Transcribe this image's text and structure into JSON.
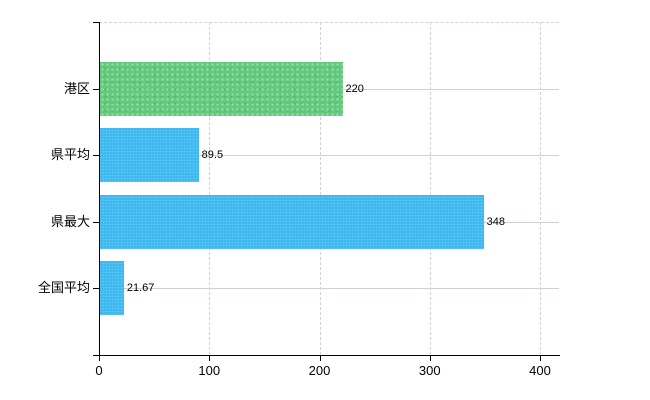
{
  "chart_data": {
    "type": "bar",
    "orientation": "horizontal",
    "title": "",
    "xlabel": "",
    "ylabel": "",
    "categories": [
      "港区",
      "県平均",
      "県最大",
      "全国平均"
    ],
    "series": [
      {
        "name": "",
        "values": [
          220,
          89.5,
          348,
          21.67
        ]
      }
    ],
    "value_labels": [
      "220",
      "89.5",
      "348",
      "21.67"
    ],
    "x_tick_labels": [
      "0",
      "100",
      "200",
      "300",
      "400"
    ],
    "x_tick_values": [
      0,
      100,
      200,
      300,
      400
    ],
    "xlim": [
      0,
      418
    ],
    "legend_position": "none",
    "grid": {
      "vertical": "dashed",
      "horizontal": "solid",
      "top_border": "dashed"
    },
    "bar_colors": [
      "#63ca7d",
      "#3bb8f0",
      "#3bb8f0",
      "#3bb8f0"
    ]
  },
  "colors": {
    "bar_green": "#63ca7d",
    "bar_blue": "#3bb8f0",
    "axis": "#000000",
    "grid_vertical": "#d4d0d4",
    "grid_horizontal": "#ccd4cc",
    "text": "#000000",
    "background": "#ffffff"
  }
}
